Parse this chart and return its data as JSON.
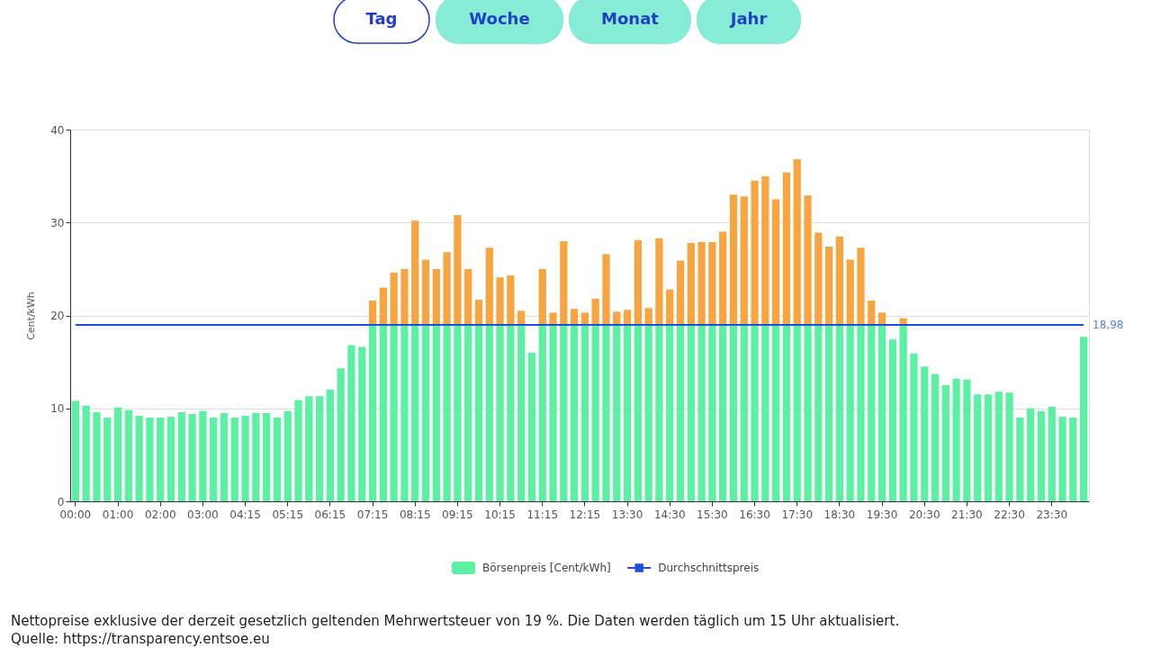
{
  "chart_data": {
    "type": "bar",
    "stacked": true,
    "ylabel": "Cent/kWh",
    "categories": [
      "00:00",
      null,
      null,
      null,
      "01:00",
      null,
      null,
      null,
      "02:00",
      null,
      null,
      null,
      "03:00",
      null,
      null,
      null,
      "04:15",
      null,
      null,
      null,
      "05:15",
      null,
      null,
      null,
      "06:15",
      null,
      null,
      null,
      "07:15",
      null,
      null,
      null,
      "08:15",
      null,
      null,
      null,
      "09:15",
      null,
      null,
      null,
      "10:15",
      null,
      null,
      null,
      "11:15",
      null,
      null,
      null,
      "12:15",
      null,
      null,
      null,
      "13:30",
      null,
      null,
      null,
      "14:30",
      null,
      null,
      null,
      "15:30",
      null,
      null,
      null,
      "16:30",
      null,
      null,
      null,
      "17:30",
      null,
      null,
      null,
      "18:30",
      null,
      null,
      null,
      "19:30",
      null,
      null,
      null,
      "20:30",
      null,
      null,
      null,
      "21:30",
      null,
      null,
      null,
      "22:30",
      null,
      null,
      null,
      "23:30",
      null,
      null,
      null
    ],
    "series": [
      {
        "name": "Börsenpreis [Cent/kWh]",
        "color": "#5cf0a2",
        "values": [
          10.8,
          10.3,
          9.6,
          9.0,
          10.1,
          9.8,
          9.2,
          9.0,
          9.0,
          9.1,
          9.6,
          9.4,
          9.7,
          9.0,
          9.5,
          9.0,
          9.2,
          9.5,
          9.5,
          9.0,
          9.7,
          10.9,
          11.3,
          11.3,
          12.0,
          14.3,
          16.8,
          16.6,
          18.98,
          18.98,
          18.98,
          18.98,
          18.98,
          18.98,
          18.98,
          18.98,
          18.98,
          18.98,
          18.98,
          18.98,
          18.98,
          18.98,
          18.98,
          16.0,
          18.98,
          18.98,
          18.98,
          18.98,
          18.98,
          18.98,
          18.98,
          18.98,
          18.98,
          18.98,
          18.98,
          18.98,
          18.98,
          18.98,
          18.98,
          18.98,
          18.98,
          18.98,
          18.98,
          18.98,
          18.98,
          18.98,
          18.98,
          18.98,
          18.98,
          18.98,
          18.98,
          18.98,
          18.98,
          18.98,
          18.98,
          18.98,
          18.98,
          17.4,
          18.98,
          15.9,
          14.5,
          13.7,
          12.5,
          13.2,
          13.1,
          11.5,
          11.5,
          11.8,
          11.7,
          9.0,
          10.0,
          9.7,
          10.2,
          9.1,
          9.0,
          17.7
        ]
      },
      {
        "color": "#f7a541",
        "values": [
          null,
          null,
          null,
          null,
          null,
          null,
          null,
          null,
          null,
          null,
          null,
          null,
          null,
          null,
          null,
          null,
          null,
          null,
          null,
          null,
          null,
          null,
          null,
          null,
          null,
          null,
          null,
          null,
          2.62,
          4.02,
          5.62,
          6.02,
          11.22,
          7.02,
          6.02,
          7.82,
          11.82,
          6.02,
          2.72,
          8.32,
          5.12,
          5.32,
          1.52,
          null,
          6.02,
          1.32,
          9.02,
          1.72,
          1.32,
          2.82,
          7.62,
          1.42,
          1.62,
          9.12,
          1.82,
          9.32,
          3.82,
          6.92,
          8.82,
          8.92,
          8.92,
          10.02,
          14.02,
          13.82,
          15.52,
          16.02,
          13.52,
          16.42,
          17.82,
          13.92,
          9.92,
          8.42,
          9.52,
          7.02,
          8.32,
          2.62,
          1.32,
          null,
          0.72,
          null,
          null,
          null,
          null,
          null,
          null,
          null,
          null,
          null,
          null,
          null,
          null,
          null,
          null,
          null,
          null,
          null
        ]
      },
      {
        "name": "Durchschnittspreis",
        "type": "line",
        "color": "#1f4fd8",
        "values": [
          18.98,
          18.98,
          18.98,
          18.98,
          18.98,
          18.98,
          18.98,
          18.98,
          18.98,
          18.98,
          18.98,
          18.98,
          18.98,
          18.98,
          18.98,
          18.98,
          18.98,
          18.98,
          18.98,
          18.98,
          18.98,
          18.98,
          18.98,
          18.98,
          18.98,
          18.98,
          18.98,
          18.98,
          18.98,
          18.98,
          18.98,
          18.98,
          18.98,
          18.98,
          18.98,
          18.98,
          18.98,
          18.98,
          18.98,
          18.98,
          18.98,
          18.98,
          18.98,
          18.98,
          18.98,
          18.98,
          18.98,
          18.98,
          18.98,
          18.98,
          18.98,
          18.98,
          18.98,
          18.98,
          18.98,
          18.98,
          18.98,
          18.98,
          18.98,
          18.98,
          18.98,
          18.98,
          18.98,
          18.98,
          18.98,
          18.98,
          18.98,
          18.98,
          18.98,
          18.98,
          18.98,
          18.98,
          18.98,
          18.98,
          18.98,
          18.98,
          18.98,
          18.98,
          18.98,
          18.98,
          18.98,
          18.98,
          18.98,
          18.98,
          18.98,
          18.98,
          18.98,
          18.98,
          18.98,
          18.98,
          18.98,
          18.98,
          18.98,
          18.98,
          18.98,
          18.98
        ],
        "value_labels": [
          null,
          null,
          null,
          null,
          null,
          null,
          null,
          null,
          null,
          null,
          null,
          null,
          null,
          null,
          null,
          null,
          null,
          null,
          null,
          null,
          null,
          null,
          null,
          null,
          null,
          null,
          null,
          null,
          null,
          null,
          null,
          null,
          null,
          null,
          null,
          null,
          null,
          null,
          null,
          null,
          null,
          null,
          null,
          null,
          null,
          null,
          null,
          null,
          null,
          null,
          null,
          null,
          null,
          null,
          null,
          null,
          null,
          null,
          null,
          null,
          null,
          null,
          null,
          null,
          null,
          null,
          null,
          null,
          null,
          null,
          null,
          null,
          null,
          null,
          null,
          null,
          null,
          null,
          null,
          null,
          null,
          null,
          null,
          null,
          null,
          null,
          null,
          null,
          null,
          null,
          null,
          null,
          null,
          null,
          null,
          "18,98"
        ]
      }
    ],
    "ylim": [
      0,
      40
    ],
    "yticks": [
      0,
      10,
      20,
      30,
      40
    ],
    "grid": "y",
    "legend": "bottom",
    "annotations": [
      "Tag",
      "Woche",
      "Monat",
      "Jahr",
      "Nettopreise exklusive der derzeit gesetzlich geltenden Mehrwertsteuer von 19 %. Die Daten werden täglich um 15 Uhr aktualisiert.",
      "Quelle: https://transparency.entsoe.eu"
    ]
  }
}
